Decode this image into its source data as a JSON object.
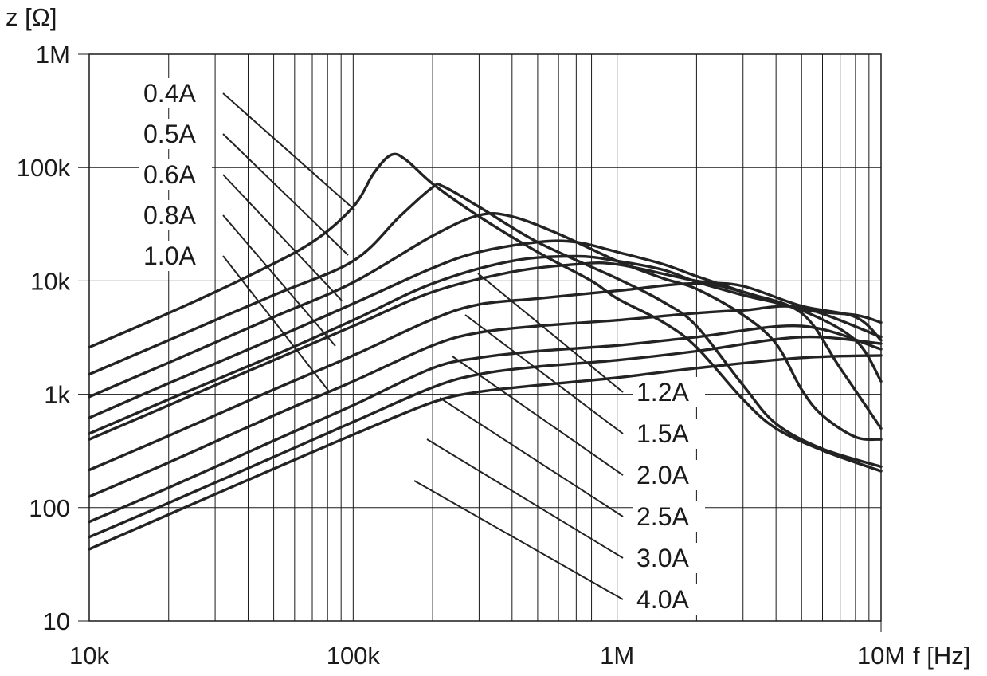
{
  "chart_data": {
    "type": "line",
    "xscale": "log",
    "yscale": "log",
    "xlim": [
      10000,
      10000000
    ],
    "ylim": [
      10,
      1000000
    ],
    "xlabel": "f [Hz]",
    "ylabel": "z [Ω]",
    "x_ticks": [
      {
        "value": 10000,
        "label": "10k"
      },
      {
        "value": 100000,
        "label": "100k"
      },
      {
        "value": 1000000,
        "label": "1M"
      },
      {
        "value": 10000000,
        "label": "10M"
      }
    ],
    "y_ticks": [
      {
        "value": 10,
        "label": "10"
      },
      {
        "value": 100,
        "label": "100"
      },
      {
        "value": 1000,
        "label": "1k"
      },
      {
        "value": 10000,
        "label": "10k"
      },
      {
        "value": 100000,
        "label": "100k"
      },
      {
        "value": 1000000,
        "label": "1M"
      }
    ],
    "grid": true,
    "series": [
      {
        "name": "0.4A",
        "label_side": "left",
        "label_rank": 0,
        "points": [
          [
            10000,
            2600
          ],
          [
            20000,
            5200
          ],
          [
            40000,
            11000
          ],
          [
            70000,
            22000
          ],
          [
            100000,
            45000
          ],
          [
            120000,
            90000
          ],
          [
            140000,
            130000
          ],
          [
            160000,
            115000
          ],
          [
            200000,
            72000
          ],
          [
            300000,
            37000
          ],
          [
            500000,
            18000
          ],
          [
            800000,
            10000
          ],
          [
            1000000,
            7000
          ],
          [
            1500000,
            4300
          ],
          [
            2000000,
            2600
          ],
          [
            3000000,
            900
          ],
          [
            4000000,
            500
          ],
          [
            6000000,
            320
          ],
          [
            10000000,
            210
          ]
        ]
      },
      {
        "name": "0.5A",
        "label_side": "left",
        "label_rank": 1,
        "points": [
          [
            10000,
            1500
          ],
          [
            20000,
            3000
          ],
          [
            50000,
            7500
          ],
          [
            100000,
            15000
          ],
          [
            150000,
            37000
          ],
          [
            200000,
            67000
          ],
          [
            220000,
            68000
          ],
          [
            300000,
            45000
          ],
          [
            500000,
            22000
          ],
          [
            1000000,
            10500
          ],
          [
            1500000,
            6500
          ],
          [
            2000000,
            4000
          ],
          [
            3000000,
            1200
          ],
          [
            4000000,
            550
          ],
          [
            6000000,
            330
          ],
          [
            10000000,
            230
          ]
        ]
      },
      {
        "name": "0.6A",
        "label_side": "left",
        "label_rank": 2,
        "points": [
          [
            10000,
            950
          ],
          [
            20000,
            1900
          ],
          [
            50000,
            4800
          ],
          [
            100000,
            9700
          ],
          [
            200000,
            25000
          ],
          [
            300000,
            38000
          ],
          [
            400000,
            37000
          ],
          [
            600000,
            26000
          ],
          [
            1000000,
            15000
          ],
          [
            1500000,
            10500
          ],
          [
            2000000,
            8500
          ],
          [
            3000000,
            5000
          ],
          [
            4000000,
            2800
          ],
          [
            5000000,
            1100
          ],
          [
            6000000,
            650
          ],
          [
            8000000,
            420
          ],
          [
            10000000,
            400
          ]
        ]
      },
      {
        "name": "0.8A",
        "label_side": "left",
        "label_rank": 3,
        "points": [
          [
            10000,
            620
          ],
          [
            20000,
            1250
          ],
          [
            50000,
            3100
          ],
          [
            100000,
            6300
          ],
          [
            200000,
            13000
          ],
          [
            300000,
            18000
          ],
          [
            500000,
            22000
          ],
          [
            700000,
            22000
          ],
          [
            1000000,
            18000
          ],
          [
            1500000,
            14000
          ],
          [
            2000000,
            11000
          ],
          [
            3000000,
            8000
          ],
          [
            5000000,
            5200
          ],
          [
            7000000,
            1700
          ],
          [
            10000000,
            500
          ]
        ]
      },
      {
        "name": "1.0A",
        "label_side": "left",
        "label_rank": 4,
        "points": [
          [
            10000,
            450
          ],
          [
            20000,
            900
          ],
          [
            50000,
            2200
          ],
          [
            100000,
            4500
          ],
          [
            200000,
            9500
          ],
          [
            400000,
            15000
          ],
          [
            700000,
            16500
          ],
          [
            1000000,
            15000
          ],
          [
            1500000,
            12500
          ],
          [
            2000000,
            9800
          ],
          [
            3000000,
            7500
          ],
          [
            5000000,
            5500
          ],
          [
            8000000,
            3000
          ],
          [
            10000000,
            1300
          ]
        ]
      },
      {
        "name": "1.2A",
        "label_side": "right",
        "label_rank": 0,
        "points": [
          [
            10000,
            400
          ],
          [
            20000,
            800
          ],
          [
            50000,
            2000
          ],
          [
            100000,
            4000
          ],
          [
            200000,
            8000
          ],
          [
            400000,
            12000
          ],
          [
            700000,
            14000
          ],
          [
            1000000,
            14000
          ],
          [
            2000000,
            10000
          ],
          [
            3000000,
            9000
          ],
          [
            5000000,
            6000
          ],
          [
            8000000,
            4800
          ],
          [
            10000000,
            3000
          ]
        ]
      },
      {
        "name": "1.5A",
        "label_side": "right",
        "label_rank": 1,
        "points": [
          [
            10000,
            215
          ],
          [
            20000,
            430
          ],
          [
            50000,
            1100
          ],
          [
            100000,
            2200
          ],
          [
            200000,
            4600
          ],
          [
            300000,
            6200
          ],
          [
            500000,
            7000
          ],
          [
            1000000,
            8200
          ],
          [
            2000000,
            9500
          ],
          [
            3000000,
            8000
          ],
          [
            5000000,
            5600
          ],
          [
            8000000,
            5000
          ],
          [
            10000000,
            4300
          ]
        ]
      },
      {
        "name": "2.0A",
        "label_side": "right",
        "label_rank": 2,
        "points": [
          [
            10000,
            125
          ],
          [
            20000,
            250
          ],
          [
            50000,
            650
          ],
          [
            100000,
            1300
          ],
          [
            200000,
            2700
          ],
          [
            300000,
            3500
          ],
          [
            500000,
            4000
          ],
          [
            1000000,
            4500
          ],
          [
            2000000,
            5200
          ],
          [
            3000000,
            5500
          ],
          [
            5000000,
            5800
          ],
          [
            10000000,
            3200
          ]
        ]
      },
      {
        "name": "2.5A",
        "label_side": "right",
        "label_rank": 3,
        "points": [
          [
            10000,
            75
          ],
          [
            20000,
            150
          ],
          [
            50000,
            390
          ],
          [
            100000,
            800
          ],
          [
            200000,
            1700
          ],
          [
            300000,
            2100
          ],
          [
            500000,
            2400
          ],
          [
            1000000,
            2700
          ],
          [
            2000000,
            3200
          ],
          [
            5000000,
            4000
          ],
          [
            10000000,
            2500
          ]
        ]
      },
      {
        "name": "3.0A",
        "label_side": "right",
        "label_rank": 4,
        "points": [
          [
            10000,
            55
          ],
          [
            20000,
            110
          ],
          [
            50000,
            280
          ],
          [
            100000,
            570
          ],
          [
            200000,
            1150
          ],
          [
            300000,
            1500
          ],
          [
            500000,
            1750
          ],
          [
            1000000,
            2000
          ],
          [
            2000000,
            2400
          ],
          [
            5000000,
            3200
          ],
          [
            10000000,
            2800
          ]
        ]
      },
      {
        "name": "4.0A",
        "label_side": "right",
        "label_rank": 5,
        "points": [
          [
            10000,
            43
          ],
          [
            20000,
            87
          ],
          [
            50000,
            220
          ],
          [
            100000,
            440
          ],
          [
            200000,
            850
          ],
          [
            300000,
            1050
          ],
          [
            500000,
            1200
          ],
          [
            1000000,
            1400
          ],
          [
            2000000,
            1700
          ],
          [
            5000000,
            2100
          ],
          [
            10000000,
            2200
          ]
        ]
      }
    ]
  }
}
